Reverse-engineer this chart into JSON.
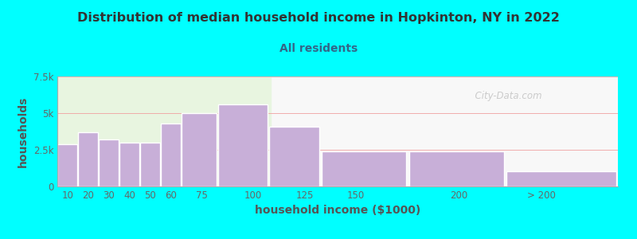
{
  "title": "Distribution of median household income in Hopkinton, NY in 2022",
  "subtitle": "All residents",
  "xlabel": "household income ($1000)",
  "ylabel": "households",
  "background_outer": "#00FFFF",
  "background_inner_left": "#e8f5e0",
  "background_inner_right": "#f8f8f8",
  "bar_color": "#c8afd8",
  "bar_edge_color": "#ffffff",
  "title_color": "#333333",
  "subtitle_color": "#336688",
  "axis_label_color": "#555555",
  "tick_label_color": "#666666",
  "watermark": "  City-Data.com",
  "categories": [
    "10",
    "20",
    "30",
    "40",
    "50",
    "60",
    "75",
    "100",
    "125",
    "150",
    "200",
    "> 200"
  ],
  "values": [
    2900,
    3700,
    3200,
    3000,
    3000,
    4300,
    5000,
    5600,
    4100,
    2400,
    2400,
    1050
  ],
  "bar_lefts": [
    5,
    15,
    25,
    35,
    45,
    55,
    65,
    82.5,
    107.5,
    132.5,
    175,
    222
  ],
  "bar_widths": [
    10,
    10,
    10,
    10,
    10,
    10,
    17.5,
    25,
    25,
    42.5,
    47.5,
    55
  ],
  "tick_positions": [
    10,
    20,
    30,
    40,
    50,
    60,
    75,
    100,
    125,
    150,
    200,
    240
  ],
  "xlim": [
    5,
    277
  ],
  "ylim": [
    0,
    7500
  ],
  "yticks": [
    0,
    2500,
    5000,
    7500
  ],
  "ytick_labels": [
    "0",
    "2.5k",
    "5k",
    "7.5k"
  ],
  "green_split_x": 0.38
}
